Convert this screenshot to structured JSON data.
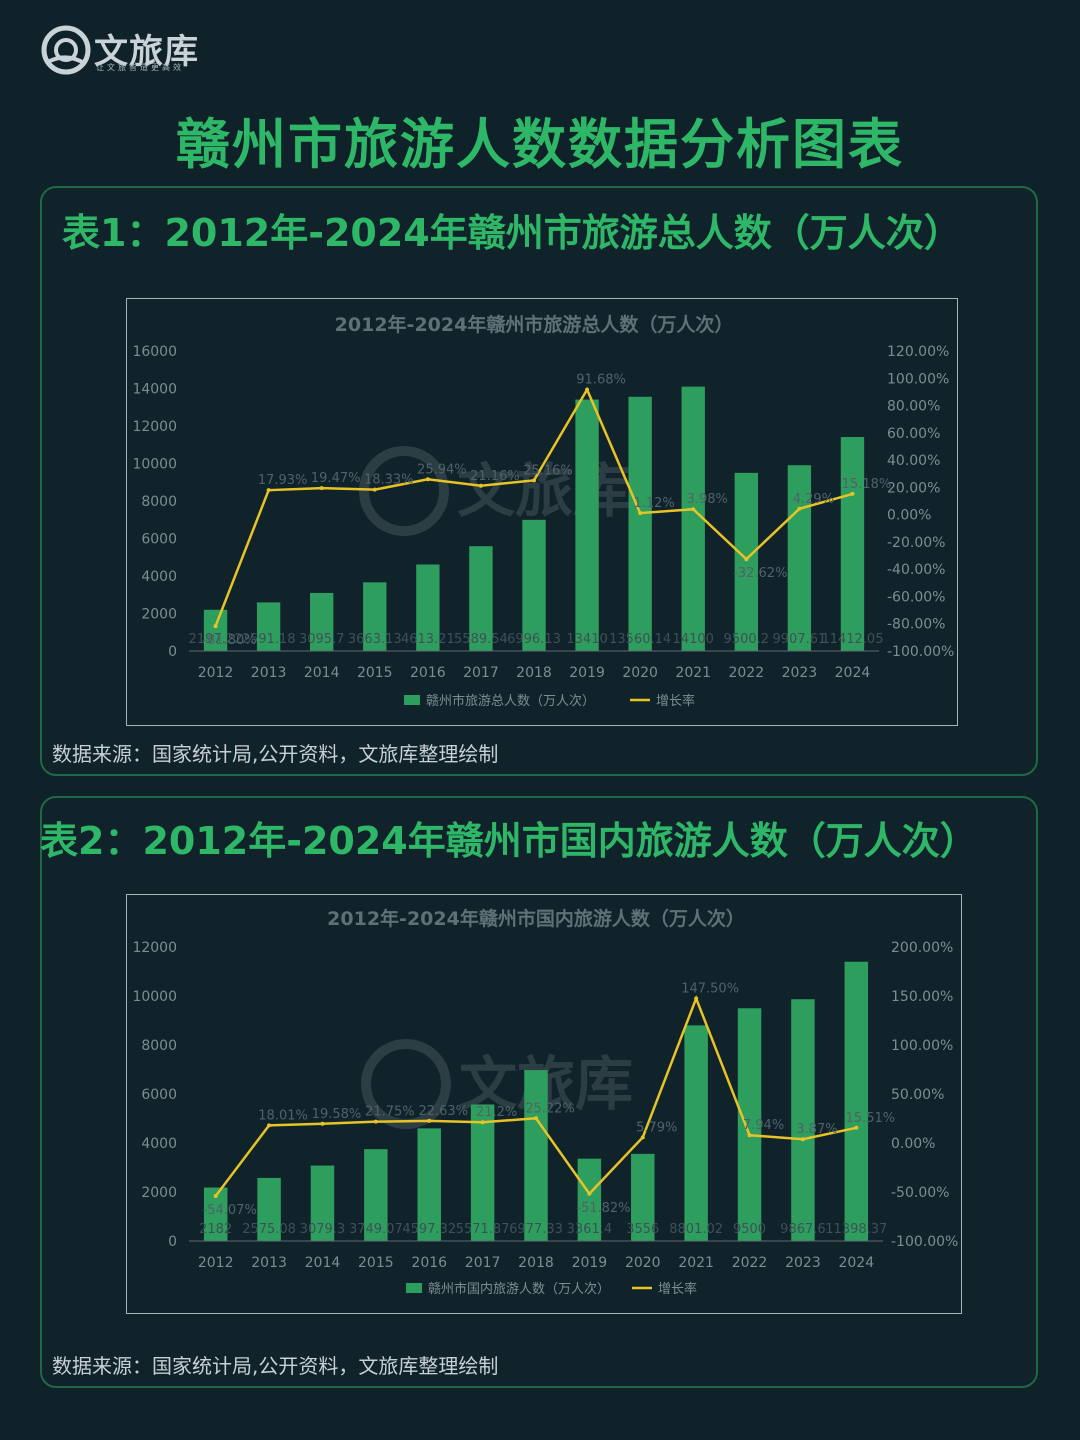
{
  "brand": {
    "name": "文旅库",
    "slogan": "让文旅智造更高效"
  },
  "page_title": "赣州市旅游人数数据分析图表",
  "source_label": "数据来源：国家统计局,公开资料，文旅库整理绘制",
  "colors": {
    "bar": "#2e9e5e",
    "line": "#e8c326",
    "title": "#2fb768",
    "background": "#0f2129"
  },
  "charts": [
    {
      "heading": "表1：2012年-2024年赣州市旅游总人数（万人次）",
      "chart_data": {
        "type": "bar",
        "title": "2012年-2024年赣州市旅游总人数（万人次）",
        "categories": [
          "2012",
          "2013",
          "2014",
          "2015",
          "2016",
          "2017",
          "2018",
          "2019",
          "2020",
          "2021",
          "2022",
          "2023",
          "2024"
        ],
        "series": [
          {
            "name": "赣州市旅游总人数（万人次）",
            "type": "bar",
            "axis": "left",
            "values": [
              2197.22,
              2591.18,
              3095.7,
              3663.13,
              4613.21,
              5589.54,
              6996.13,
              13410,
              13560.14,
              14100,
              9500.2,
              9907.61,
              11412.05
            ],
            "labels": [
              "2197.22",
              "2591.18",
              "3095.7",
              "3663.13",
              "4613.21",
              "5589.54",
              "6996.13",
              "13410",
              "13560.14",
              "14100",
              "9500.2",
              "9907.61",
              "11412.05"
            ]
          },
          {
            "name": "增长率",
            "type": "line",
            "axis": "right",
            "values": [
              -81.8,
              17.93,
              19.47,
              18.33,
              25.94,
              21.16,
              25.16,
              91.68,
              1.12,
              3.98,
              -32.62,
              4.29,
              15.18
            ],
            "labels": [
              "-81.80%",
              "17.93%",
              "19.47%",
              "18.33%",
              "25.94%",
              "21.16%",
              "25.16%",
              "91.68%",
              "1.12%",
              "3.98%",
              "-32.62%",
              "4.29%",
              "15.18%"
            ]
          }
        ],
        "ylim_left": [
          0,
          16000
        ],
        "yticks_left": [
          "0",
          "2000",
          "4000",
          "6000",
          "8000",
          "10000",
          "12000",
          "14000",
          "16000"
        ],
        "ylim_right": [
          -100,
          120
        ],
        "yticks_right": [
          "-100.00%",
          "-80.00%",
          "-60.00%",
          "-40.00%",
          "-20.00%",
          "0.00%",
          "20.00%",
          "40.00%",
          "60.00%",
          "80.00%",
          "100.00%",
          "120.00%"
        ],
        "legend": "bottom"
      }
    },
    {
      "heading": "表2：2012年-2024年赣州市国内旅游人数（万人次）",
      "chart_data": {
        "type": "bar",
        "title": "2012年-2024年赣州市国内旅游人数（万人次）",
        "categories": [
          "2012",
          "2013",
          "2014",
          "2015",
          "2016",
          "2017",
          "2018",
          "2019",
          "2020",
          "2021",
          "2022",
          "2023",
          "2024"
        ],
        "series": [
          {
            "name": "赣州市国内旅游人数（万人次）",
            "type": "bar",
            "axis": "left",
            "values": [
              2182,
              2575.08,
              3079.3,
              3749.07,
              4597.32,
              5571.87,
              6977.33,
              3361.4,
              3556,
              8801.02,
              9500,
              9867.6,
              11398.37
            ],
            "labels": [
              "2182",
              "2575.08",
              "3079.3",
              "3749.07",
              "4597.32",
              "5571.87",
              "6977.33",
              "3361.4",
              "3556",
              "8801.02",
              "9500",
              "9867.6",
              "11398.37"
            ]
          },
          {
            "name": "增长率",
            "type": "line",
            "axis": "right",
            "values": [
              -54.07,
              18.01,
              19.58,
              21.75,
              22.63,
              21.2,
              25.22,
              -51.82,
              5.79,
              147.5,
              7.94,
              3.87,
              15.51
            ],
            "labels": [
              "-54.07%",
              "18.01%",
              "19.58%",
              "21.75%",
              "22.63%",
              "21.2%",
              "25.22%",
              "-51.82%",
              "5.79%",
              "147.50%",
              "7.94%",
              "3.87%",
              "15.51%"
            ]
          }
        ],
        "ylim_left": [
          0,
          12000
        ],
        "yticks_left": [
          "0",
          "2000",
          "4000",
          "6000",
          "8000",
          "10000",
          "12000"
        ],
        "ylim_right": [
          -100,
          200
        ],
        "yticks_right": [
          "-100.00%",
          "-50.00%",
          "0.00%",
          "50.00%",
          "100.00%",
          "150.00%",
          "200.00%"
        ],
        "legend": "bottom"
      }
    }
  ]
}
